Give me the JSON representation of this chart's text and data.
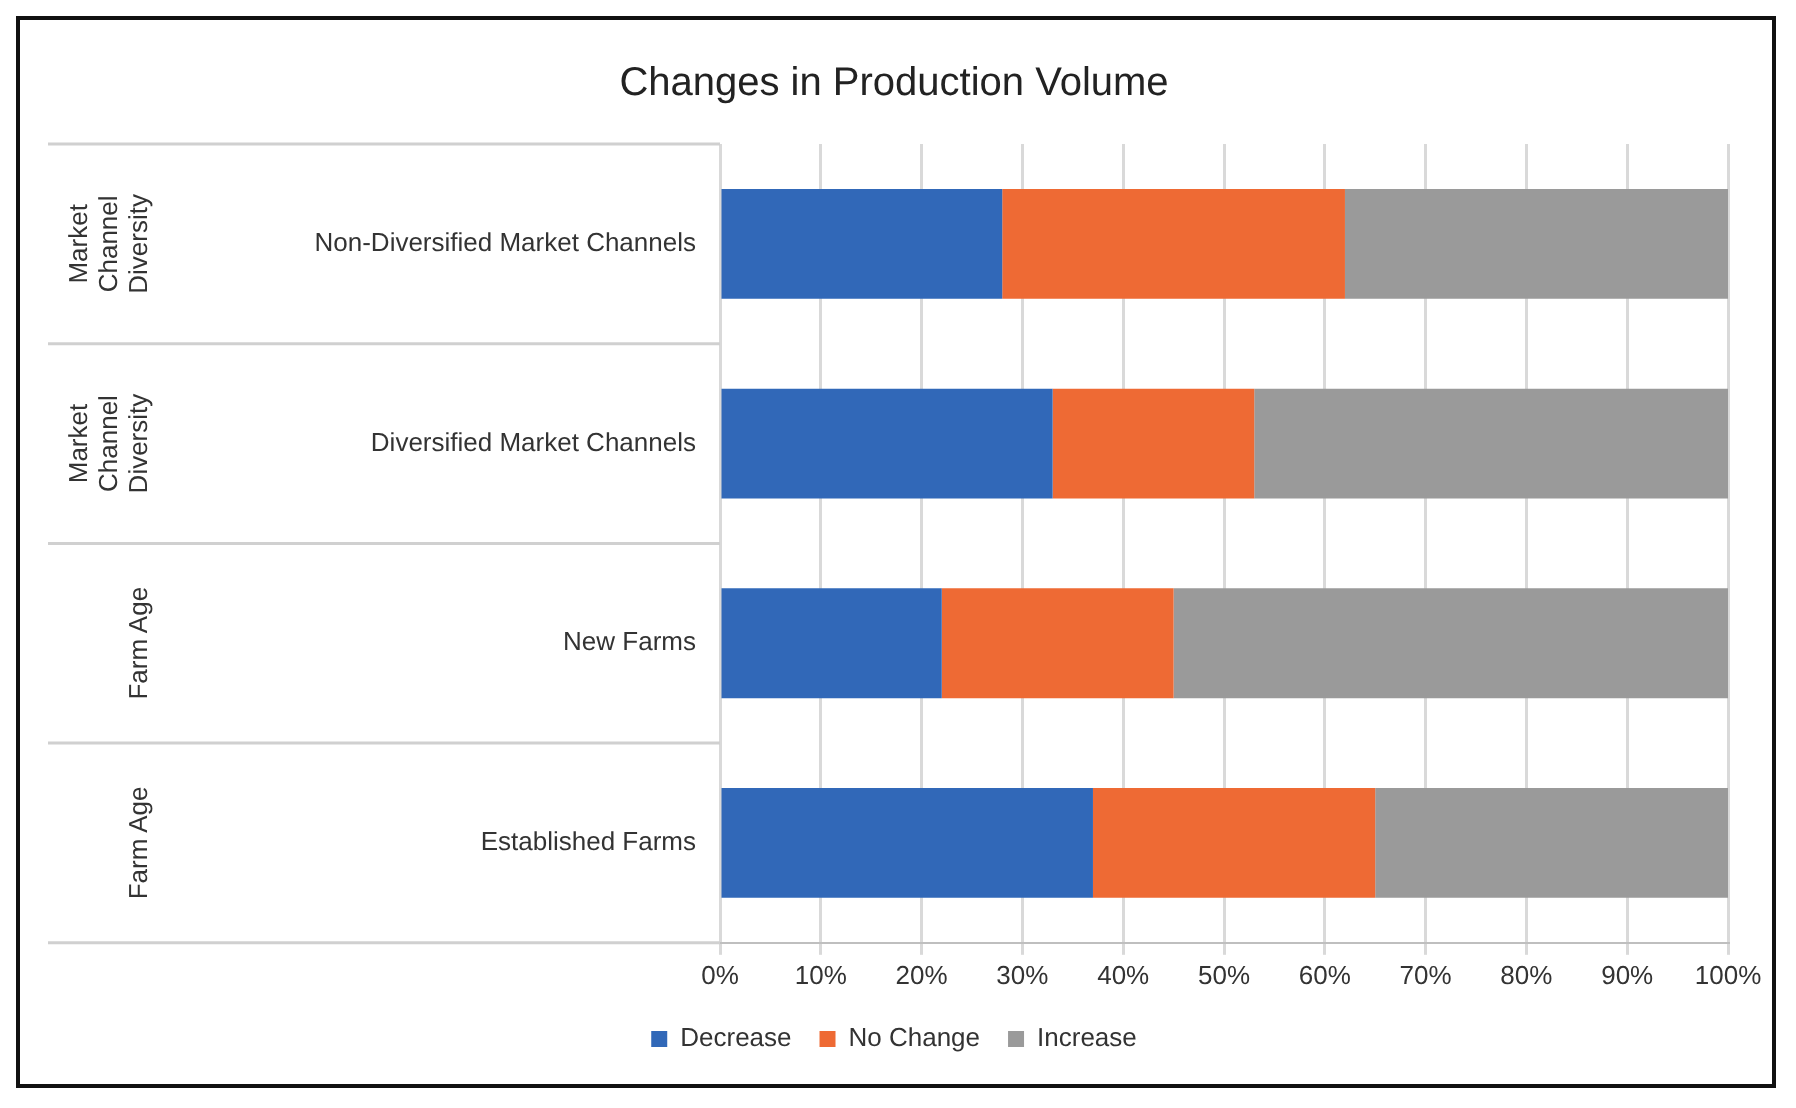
{
  "chart_data": {
    "type": "bar",
    "orientation": "horizontal",
    "stacked": true,
    "title": "Changes in Production Volume",
    "categories": [
      "Non-Diversified Market Channels",
      "Diversified Market Channels",
      "New Farms",
      "Established Farms"
    ],
    "series": [
      {
        "name": "Decrease",
        "color": "#3168b8",
        "values": [
          28,
          33,
          22,
          37
        ]
      },
      {
        "name": "No Change",
        "color": "#ee6a34",
        "values": [
          34,
          20,
          23,
          28
        ]
      },
      {
        "name": "Increase",
        "color": "#9a9a9a",
        "values": [
          38,
          47,
          55,
          35
        ]
      }
    ],
    "xlim": [
      0,
      100
    ],
    "xticks": [
      {
        "value": 0,
        "label": "0%"
      },
      {
        "value": 10,
        "label": "10%"
      },
      {
        "value": 20,
        "label": "20%"
      },
      {
        "value": 30,
        "label": "30%"
      },
      {
        "value": 40,
        "label": "40%"
      },
      {
        "value": 50,
        "label": "50%"
      },
      {
        "value": 60,
        "label": "60%"
      },
      {
        "value": 70,
        "label": "70%"
      },
      {
        "value": 80,
        "label": "80%"
      },
      {
        "value": 90,
        "label": "90%"
      },
      {
        "value": 100,
        "label": "100%"
      }
    ],
    "annotations": [
      "Market Channel Diversity",
      "Market Channel Diversity",
      "Farm Age",
      "Farm Age"
    ],
    "grid": "x",
    "legend": "bottom"
  }
}
